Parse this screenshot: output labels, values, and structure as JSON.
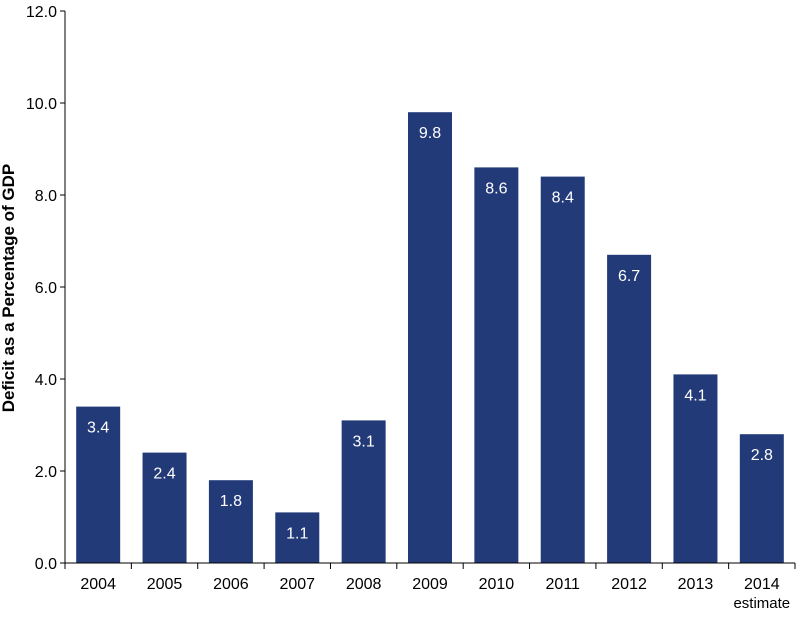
{
  "chart_data": {
    "type": "bar",
    "title": "",
    "xlabel": "",
    "ylabel": "Deficit as a Percentage of GDP",
    "categories": [
      "2004",
      "2005",
      "2006",
      "2007",
      "2008",
      "2009",
      "2010",
      "2011",
      "2012",
      "2013",
      "2014"
    ],
    "category_sublabels": [
      "",
      "",
      "",
      "",
      "",
      "",
      "",
      "",
      "",
      "",
      "estimate"
    ],
    "values": [
      3.4,
      2.4,
      1.8,
      1.1,
      3.1,
      9.8,
      8.6,
      8.4,
      6.7,
      4.1,
      2.8
    ],
    "data_labels": [
      "3.4",
      "2.4",
      "1.8",
      "1.1",
      "3.1",
      "9.8",
      "8.6",
      "8.4",
      "6.7",
      "4.1",
      "2.8"
    ],
    "ylim": [
      0,
      12
    ],
    "y_ticks": [
      "0.0",
      "2.0",
      "4.0",
      "6.0",
      "8.0",
      "10.0",
      "12.0"
    ],
    "grid": false,
    "legend": "none",
    "colors": {
      "bar": "#233a79",
      "axis": "#000000",
      "label_on_bar": "#ffffff"
    }
  }
}
